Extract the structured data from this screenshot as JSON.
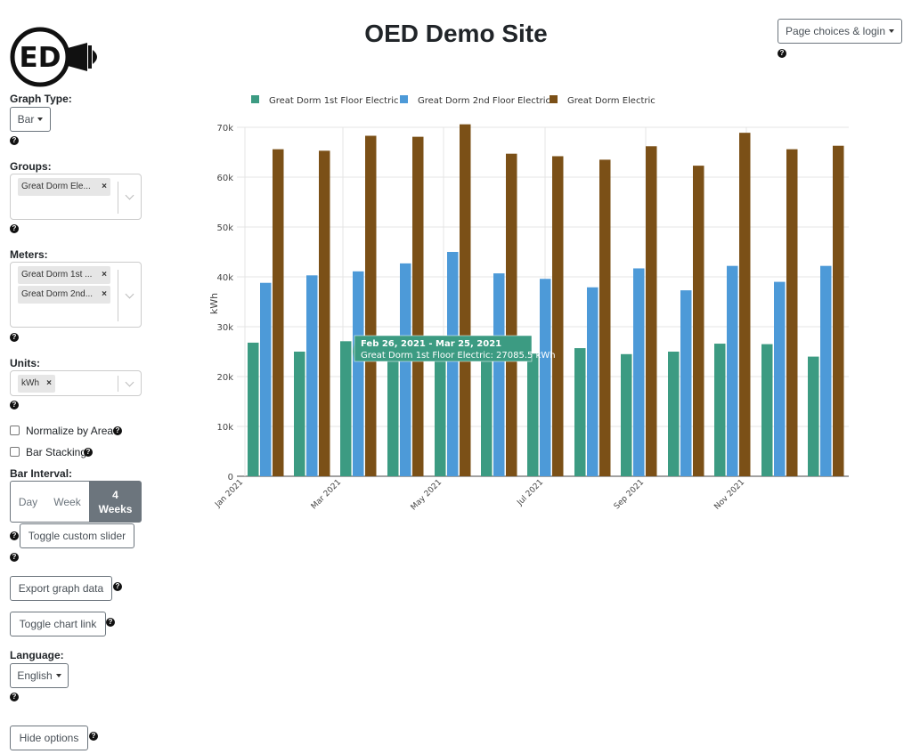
{
  "header": {
    "title": "OED Demo Site",
    "logo_text": "ED",
    "page_choices_label": "Page choices & login"
  },
  "sidebar": {
    "graph_type_label": "Graph Type:",
    "graph_type_value": "Bar",
    "groups_label": "Groups:",
    "groups_selected": [
      "Great Dorm Ele..."
    ],
    "meters_label": "Meters:",
    "meters_selected": [
      "Great Dorm 1st ...",
      "Great Dorm 2nd..."
    ],
    "units_label": "Units:",
    "units_selected": [
      "kWh"
    ],
    "normalize_label": "Normalize by Area",
    "stacking_label": "Bar Stacking",
    "bar_interval_label": "Bar Interval:",
    "interval_options": [
      "Day",
      "Week",
      "4 Weeks"
    ],
    "interval_selected": "4 Weeks",
    "toggle_slider_label": "Toggle custom slider",
    "export_label": "Export graph data",
    "chart_link_label": "Toggle chart link",
    "language_label": "Language:",
    "language_value": "English",
    "hide_options_label": "Hide options",
    "help_icon": "question-circle-icon"
  },
  "tooltip": {
    "title": "Feb 26, 2021 - Mar 25, 2021",
    "body": "Great Dorm 1st Floor Electric: 27085.5 kWh",
    "color": "#3c9b82"
  },
  "chart_data": {
    "type": "bar",
    "ylabel": "kWh",
    "ylim": [
      0,
      70000
    ],
    "y_ticks": [
      "0",
      "10k",
      "20k",
      "30k",
      "40k",
      "50k",
      "60k",
      "70k"
    ],
    "x_ticks": [
      "Jan 2021",
      "Mar 2021",
      "May 2021",
      "Jul 2021",
      "Sep 2021",
      "Nov 2021"
    ],
    "legend_position": "top",
    "series": [
      {
        "name": "Great Dorm 1st Floor Electric",
        "color": "#3c9b82",
        "values": [
          26800,
          25000,
          27085.5,
          27000,
          25500,
          23500,
          24600,
          25700,
          24500,
          25000,
          26600,
          26500,
          24000
        ]
      },
      {
        "name": "Great Dorm 2nd Floor Electric",
        "color": "#4d9ad8",
        "values": [
          38800,
          40300,
          41100,
          42700,
          45000,
          40700,
          39600,
          37900,
          41700,
          37300,
          42200,
          39000,
          42200
        ]
      },
      {
        "name": "Great Dorm Electric",
        "color": "#7b5017",
        "values": [
          65600,
          65300,
          68300,
          68100,
          70600,
          64700,
          64200,
          63500,
          66200,
          62300,
          68900,
          65600,
          66300
        ]
      }
    ]
  }
}
